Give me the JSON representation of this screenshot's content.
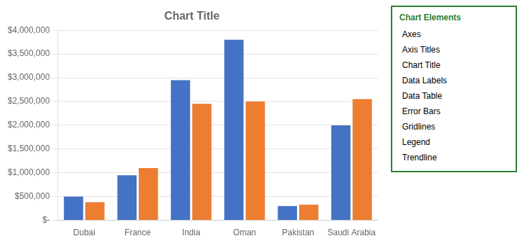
{
  "chart_data": {
    "type": "bar",
    "title": "Chart Title",
    "categories": [
      "Dubai",
      "France",
      "India",
      "Oman",
      "Pakistan",
      "Saudi Arabia"
    ],
    "series": [
      {
        "color": "#4472C4",
        "values": [
          500000,
          950000,
          2950000,
          3800000,
          300000,
          2000000
        ]
      },
      {
        "color": "#ED7D31",
        "values": [
          380000,
          1100000,
          2450000,
          2500000,
          330000,
          2550000
        ]
      }
    ],
    "ylim": [
      0,
      4000000
    ],
    "yticks": [
      {
        "value": 0,
        "label": "$-"
      },
      {
        "value": 500000,
        "label": "$500,000"
      },
      {
        "value": 1000000,
        "label": "$1,000,000"
      },
      {
        "value": 1500000,
        "label": "$1,500,000"
      },
      {
        "value": 2000000,
        "label": "$2,000,000"
      },
      {
        "value": 2500000,
        "label": "$2,500,000"
      },
      {
        "value": 3000000,
        "label": "$3,000,000"
      },
      {
        "value": 3500000,
        "label": "$3,500,000"
      },
      {
        "value": 4000000,
        "label": "$4,000,000"
      }
    ],
    "grid": true,
    "annotations": [
      "Chart Elements",
      "Axes",
      "Axis Titles",
      "Chart Title",
      "Data Labels",
      "Data Table",
      "Error Bars",
      "Gridlines",
      "Legend",
      "Trendline"
    ]
  }
}
